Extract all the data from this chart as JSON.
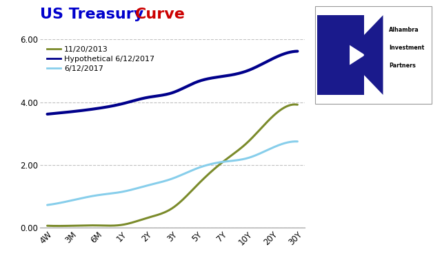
{
  "title_part1": "US Treasury ",
  "title_part2": "Curve",
  "title_color1": "#0000CC",
  "title_color2": "#CC0000",
  "title_fontsize": 16,
  "x_labels": [
    "4W",
    "3M",
    "6M",
    "1Y",
    "2Y",
    "3Y",
    "5Y",
    "7Y",
    "10Y",
    "20Y",
    "30Y"
  ],
  "x_positions": [
    0,
    1,
    2,
    3,
    4,
    5,
    6,
    7,
    8,
    9,
    10
  ],
  "series": [
    {
      "label": "11/20/2013",
      "color": "#7B8B2B",
      "linewidth": 2.2,
      "values": [
        0.07,
        0.07,
        0.08,
        0.1,
        0.32,
        0.63,
        1.37,
        2.09,
        2.72,
        3.54,
        3.92
      ]
    },
    {
      "label": "Hypothetical 6/12/2017",
      "color": "#00008B",
      "linewidth": 3.0,
      "values": [
        3.62,
        3.7,
        3.8,
        3.95,
        4.15,
        4.3,
        4.65,
        4.82,
        5.0,
        5.38,
        5.62
      ]
    },
    {
      "label": "6/12/2017",
      "color": "#87CEEB",
      "linewidth": 2.2,
      "values": [
        0.73,
        0.88,
        1.04,
        1.15,
        1.35,
        1.57,
        1.9,
        2.1,
        2.22,
        2.55,
        2.75
      ]
    }
  ],
  "ylim": [
    0,
    6.0
  ],
  "yticks": [
    0.0,
    2.0,
    4.0,
    6.0
  ],
  "background_color": "#FFFFFF",
  "grid_color": "#BBBBBB",
  "plot_bg_color": "#FFFFFF",
  "logo_text": [
    "Alhambra",
    "Investment",
    "Partners"
  ],
  "logo_blue": "#1A1A8C"
}
